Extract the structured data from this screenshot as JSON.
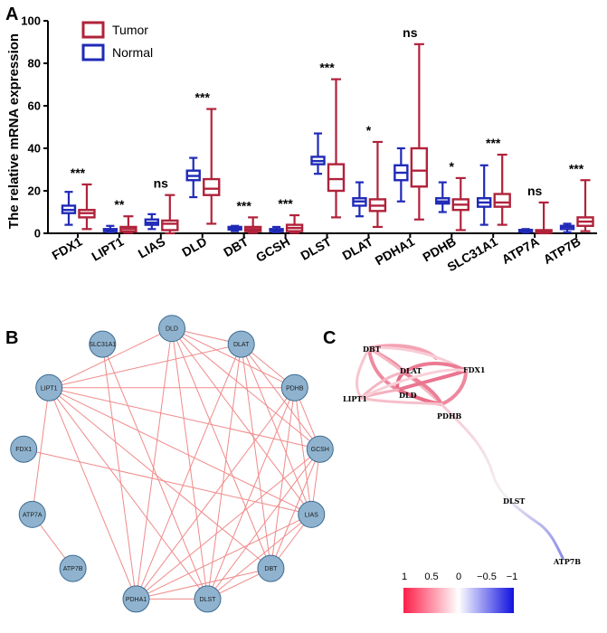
{
  "panels": {
    "a": "A",
    "b": "B",
    "c": "C"
  },
  "colors": {
    "tumor": "#b0223a",
    "normal": "#1f2ab7",
    "node_fill": "#8fb3cf",
    "node_stroke": "#3d6a8f",
    "network_edge": "#f08a8a",
    "scale_pos": "#ff1f4a",
    "scale_neg": "#1010e0"
  },
  "chart_data": {
    "type": "boxplot",
    "ylabel": "The relative mRNA expression",
    "ylim": [
      0,
      100
    ],
    "yticks": [
      0,
      20,
      40,
      60,
      80,
      100
    ],
    "legend": [
      {
        "name": "Tumor",
        "color": "#b0223a"
      },
      {
        "name": "Normal",
        "color": "#1f2ab7"
      }
    ],
    "legend_position": "top-left",
    "categories": [
      "FDX1",
      "LIPT1",
      "LIAS",
      "DLD",
      "DBT",
      "GCSH",
      "DLST",
      "DLAT",
      "PDHA1",
      "PDHB",
      "SLC31A1",
      "ATP7A",
      "ATP7B"
    ],
    "significance": [
      "***",
      "**",
      "ns",
      "***",
      "***",
      "***",
      "***",
      "*",
      "ns",
      "*",
      "***",
      "ns",
      "***"
    ],
    "normal": [
      {
        "min": 4,
        "q1": 9.5,
        "median": 11,
        "q3": 13,
        "max": 19.5
      },
      {
        "min": 0.5,
        "q1": 1,
        "median": 1.5,
        "q3": 2,
        "max": 3.5
      },
      {
        "min": 2,
        "q1": 4,
        "median": 5,
        "q3": 6.5,
        "max": 9
      },
      {
        "min": 17,
        "q1": 25,
        "median": 27,
        "q3": 29.5,
        "max": 35.5
      },
      {
        "min": 1,
        "q1": 1.8,
        "median": 2.3,
        "q3": 3,
        "max": 3.5
      },
      {
        "min": 0.5,
        "q1": 1,
        "median": 1.5,
        "q3": 2,
        "max": 3
      },
      {
        "min": 28,
        "q1": 32.5,
        "median": 34,
        "q3": 36,
        "max": 47
      },
      {
        "min": 8,
        "q1": 13,
        "median": 15,
        "q3": 16.5,
        "max": 24
      },
      {
        "min": 15,
        "q1": 25,
        "median": 28.5,
        "q3": 32,
        "max": 40
      },
      {
        "min": 10,
        "q1": 14,
        "median": 15,
        "q3": 16.5,
        "max": 24
      },
      {
        "min": 4,
        "q1": 12.5,
        "median": 14.5,
        "q3": 16.5,
        "max": 32
      },
      {
        "min": 0.3,
        "q1": 0.8,
        "median": 1.2,
        "q3": 1.6,
        "max": 2
      },
      {
        "min": 0.5,
        "q1": 2,
        "median": 3,
        "q3": 3.5,
        "max": 4.5
      }
    ],
    "tumor": [
      {
        "min": 2,
        "q1": 7.5,
        "median": 9.5,
        "q3": 11,
        "max": 23
      },
      {
        "min": 0.2,
        "q1": 0.8,
        "median": 2,
        "q3": 3,
        "max": 8
      },
      {
        "min": 0,
        "q1": 1.5,
        "median": 4.5,
        "q3": 6,
        "max": 18
      },
      {
        "min": 4.5,
        "q1": 18,
        "median": 21,
        "q3": 25.5,
        "max": 58.5
      },
      {
        "min": 0.2,
        "q1": 1,
        "median": 2,
        "q3": 3,
        "max": 7.5
      },
      {
        "min": 0.2,
        "q1": 1,
        "median": 2.5,
        "q3": 4,
        "max": 8.5
      },
      {
        "min": 7.5,
        "q1": 20,
        "median": 25.5,
        "q3": 32.5,
        "max": 72.5
      },
      {
        "min": 3,
        "q1": 10.5,
        "median": 13,
        "q3": 16,
        "max": 43
      },
      {
        "min": 6.5,
        "q1": 22,
        "median": 29.5,
        "q3": 40,
        "max": 89
      },
      {
        "min": 1.5,
        "q1": 11,
        "median": 13.5,
        "q3": 16,
        "max": 26
      },
      {
        "min": 4,
        "q1": 12.5,
        "median": 14.5,
        "q3": 18.5,
        "max": 37
      },
      {
        "min": 0,
        "q1": 0.3,
        "median": 0.8,
        "q3": 1.5,
        "max": 14.5
      },
      {
        "min": 1,
        "q1": 3.5,
        "median": 5.5,
        "q3": 7.5,
        "max": 25
      }
    ]
  },
  "network": {
    "nodes": [
      "DLD",
      "DLAT",
      "PDHB",
      "GCSH",
      "LIAS",
      "DBT",
      "DLST",
      "PDHA1",
      "ATP7B",
      "ATP7A",
      "FDX1",
      "LIPT1",
      "SLC31A1"
    ],
    "edges": [
      [
        "LIPT1",
        "DLD"
      ],
      [
        "LIPT1",
        "DLAT"
      ],
      [
        "LIPT1",
        "PDHB"
      ],
      [
        "LIPT1",
        "GCSH"
      ],
      [
        "LIPT1",
        "LIAS"
      ],
      [
        "LIPT1",
        "DBT"
      ],
      [
        "LIPT1",
        "DLST"
      ],
      [
        "LIPT1",
        "PDHA1"
      ],
      [
        "DLD",
        "DLAT"
      ],
      [
        "DLD",
        "PDHB"
      ],
      [
        "DLD",
        "GCSH"
      ],
      [
        "DLD",
        "LIAS"
      ],
      [
        "DLD",
        "DBT"
      ],
      [
        "DLD",
        "DLST"
      ],
      [
        "DLD",
        "PDHA1"
      ],
      [
        "DLAT",
        "PDHB"
      ],
      [
        "DLAT",
        "GCSH"
      ],
      [
        "DLAT",
        "LIAS"
      ],
      [
        "DLAT",
        "DLST"
      ],
      [
        "DLAT",
        "PDHA1"
      ],
      [
        "DLAT",
        "DBT"
      ],
      [
        "PDHB",
        "GCSH"
      ],
      [
        "PDHB",
        "LIAS"
      ],
      [
        "PDHB",
        "PDHA1"
      ],
      [
        "PDHB",
        "DLST"
      ],
      [
        "PDHB",
        "DBT"
      ],
      [
        "GCSH",
        "LIAS"
      ],
      [
        "GCSH",
        "DBT"
      ],
      [
        "GCSH",
        "DLST"
      ],
      [
        "GCSH",
        "PDHA1"
      ],
      [
        "LIAS",
        "DBT"
      ],
      [
        "LIAS",
        "DLST"
      ],
      [
        "LIAS",
        "PDHA1"
      ],
      [
        "DBT",
        "DLST"
      ],
      [
        "DBT",
        "PDHA1"
      ],
      [
        "DLST",
        "PDHA1"
      ],
      [
        "SLC31A1",
        "PDHA1"
      ],
      [
        "SLC31A1",
        "DLST"
      ],
      [
        "FDX1",
        "LIAS"
      ],
      [
        "ATP7A",
        "ATP7B"
      ],
      [
        "ATP7A",
        "LIPT1"
      ]
    ]
  },
  "correlation": {
    "labels": [
      "DBT",
      "DLAT",
      "FDX1",
      "LIPT1",
      "DLD",
      "PDHB",
      "DLST",
      "ATP7B"
    ],
    "scale_ticks": [
      "1",
      "0.5",
      "0",
      "−0.5",
      "−1"
    ]
  }
}
